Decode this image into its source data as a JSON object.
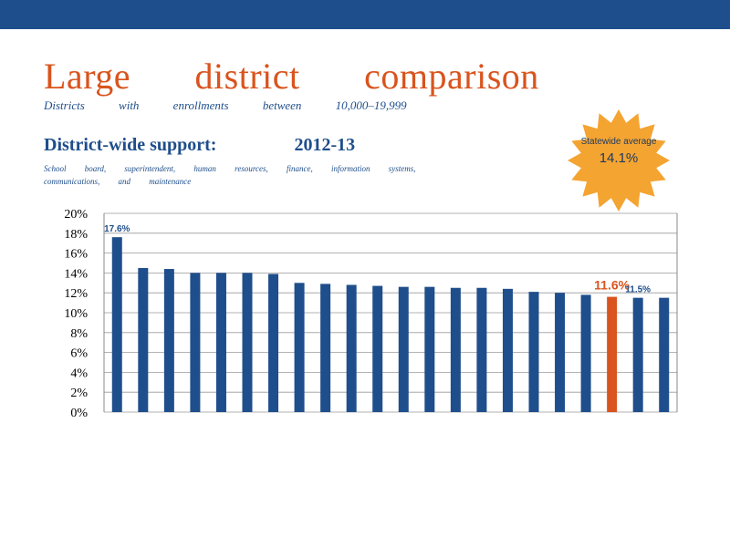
{
  "slide": {
    "title": "Large district comparison",
    "subtitle": "Districts with enrollments between 10,000–19,999",
    "heading_part1": "District-wide support:",
    "heading_part2": "2012-13",
    "detail": "School board, superintendent, human resources, finance, information systems, communications, and maintenance"
  },
  "badge": {
    "label": "Statewide average",
    "value": "14.1%"
  },
  "colors": {
    "bar": "#1f4e8c",
    "highlight": "#d9541e",
    "badge": "#f4a431",
    "topbar": "#1f4e8c"
  },
  "chart_data": {
    "type": "bar",
    "categories": [
      "",
      "",
      "",
      "",
      "",
      "",
      "",
      "",
      "",
      "",
      "",
      "",
      "",
      "",
      "",
      "",
      "",
      "",
      "",
      "",
      "",
      ""
    ],
    "values": [
      17.6,
      14.5,
      14.4,
      14.0,
      14.0,
      14.0,
      13.9,
      13.0,
      12.9,
      12.8,
      12.7,
      12.6,
      12.6,
      12.5,
      12.5,
      12.4,
      12.1,
      12.0,
      11.8,
      11.6,
      11.5,
      11.5
    ],
    "highlight_index": 19,
    "data_labels": [
      {
        "index": 0,
        "text": "17.6%"
      },
      {
        "index": 19,
        "text": "11.6%"
      },
      {
        "index": 20,
        "text": "11.5%"
      }
    ],
    "ylim": [
      0,
      20
    ],
    "yticks": [
      "0%",
      "2%",
      "4%",
      "6%",
      "8%",
      "10%",
      "12%",
      "14%",
      "16%",
      "18%",
      "20%"
    ],
    "grid": true,
    "title": "",
    "xlabel": "",
    "ylabel": ""
  }
}
